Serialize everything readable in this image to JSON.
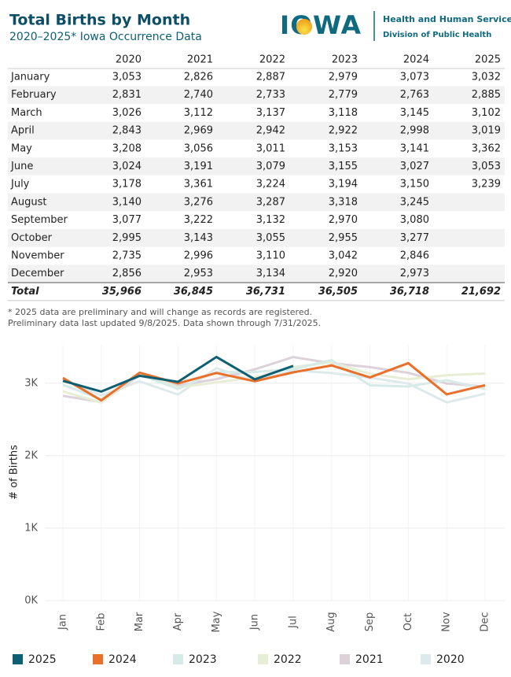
{
  "header": {
    "title": "Total Births by Month",
    "subtitle": "2020–2025* Iowa Occurrence Data",
    "logo": "IOWA",
    "org": "Health and Human Services",
    "division": "Division of Public Health"
  },
  "table": {
    "columns": [
      "2020",
      "2021",
      "2022",
      "2023",
      "2024",
      "2025"
    ],
    "rows": [
      {
        "label": "January",
        "values": [
          "3,053",
          "2,826",
          "2,887",
          "2,979",
          "3,073",
          "3,032"
        ]
      },
      {
        "label": "February",
        "values": [
          "2,831",
          "2,740",
          "2,733",
          "2,779",
          "2,763",
          "2,885"
        ]
      },
      {
        "label": "March",
        "values": [
          "3,026",
          "3,112",
          "3,137",
          "3,118",
          "3,145",
          "3,102"
        ]
      },
      {
        "label": "April",
        "values": [
          "2,843",
          "2,969",
          "2,942",
          "2,922",
          "2,998",
          "3,019"
        ]
      },
      {
        "label": "May",
        "values": [
          "3,208",
          "3,056",
          "3,011",
          "3,153",
          "3,141",
          "3,362"
        ]
      },
      {
        "label": "June",
        "values": [
          "3,024",
          "3,191",
          "3,079",
          "3,155",
          "3,027",
          "3,053"
        ]
      },
      {
        "label": "July",
        "values": [
          "3,178",
          "3,361",
          "3,224",
          "3,194",
          "3,150",
          "3,239"
        ]
      },
      {
        "label": "August",
        "values": [
          "3,140",
          "3,276",
          "3,287",
          "3,318",
          "3,245"
        ]
      },
      {
        "label": "September",
        "values": [
          "3,077",
          "3,222",
          "3,132",
          "2,970",
          "3,080"
        ]
      },
      {
        "label": "October",
        "values": [
          "2,995",
          "3,143",
          "3,055",
          "2,955",
          "3,277"
        ]
      },
      {
        "label": "November",
        "values": [
          "2,735",
          "2,996",
          "3,110",
          "3,042",
          "2,846"
        ]
      },
      {
        "label": "December",
        "values": [
          "2,856",
          "2,953",
          "3,134",
          "2,920",
          "2,973"
        ]
      }
    ],
    "total": {
      "label": "Total",
      "values": [
        "35,966",
        "36,845",
        "36,731",
        "36,505",
        "36,718",
        "21,692"
      ]
    }
  },
  "notes": [
    "* 2025 data are preliminary and will change as records are registered.",
    "Preliminary data last updated 9/8/2025. Data shown through 7/31/2025."
  ],
  "chart_data": {
    "type": "line",
    "ylabel": "# of Births",
    "categories": [
      "Jan",
      "Feb",
      "Mar",
      "Apr",
      "May",
      "Jun",
      "Jul",
      "Aug",
      "Sep",
      "Oct",
      "Nov",
      "Dec"
    ],
    "ylim": [
      0,
      3530
    ],
    "yticks": [
      {
        "value": 0,
        "label": "0K"
      },
      {
        "value": 1000,
        "label": "1K"
      },
      {
        "value": 2000,
        "label": "2K"
      },
      {
        "value": 3000,
        "label": "3K"
      }
    ],
    "grid": true,
    "series": [
      {
        "name": "2025",
        "color": "#0f5f73",
        "values": [
          3032,
          2885,
          3102,
          3019,
          3362,
          3053,
          3239,
          null,
          null,
          null,
          null,
          null
        ]
      },
      {
        "name": "2024",
        "color": "#e8702a",
        "values": [
          3073,
          2763,
          3145,
          2998,
          3141,
          3027,
          3150,
          3245,
          3080,
          3277,
          2846,
          2973
        ]
      },
      {
        "name": "2023",
        "color": "#d6ebe8",
        "values": [
          2979,
          2779,
          3118,
          2922,
          3153,
          3155,
          3194,
          3318,
          2970,
          2955,
          3042,
          2920
        ]
      },
      {
        "name": "2022",
        "color": "#e8eed6",
        "values": [
          2887,
          2733,
          3137,
          2942,
          3011,
          3079,
          3224,
          3287,
          3132,
          3055,
          3110,
          3134
        ]
      },
      {
        "name": "2021",
        "color": "#ddd2da",
        "values": [
          2826,
          2740,
          3112,
          2969,
          3056,
          3191,
          3361,
          3276,
          3222,
          3143,
          2996,
          2953
        ]
      },
      {
        "name": "2020",
        "color": "#dde9ea",
        "values": [
          3053,
          2831,
          3026,
          2843,
          3208,
          3024,
          3178,
          3140,
          3077,
          2995,
          2735,
          2856
        ]
      }
    ]
  }
}
